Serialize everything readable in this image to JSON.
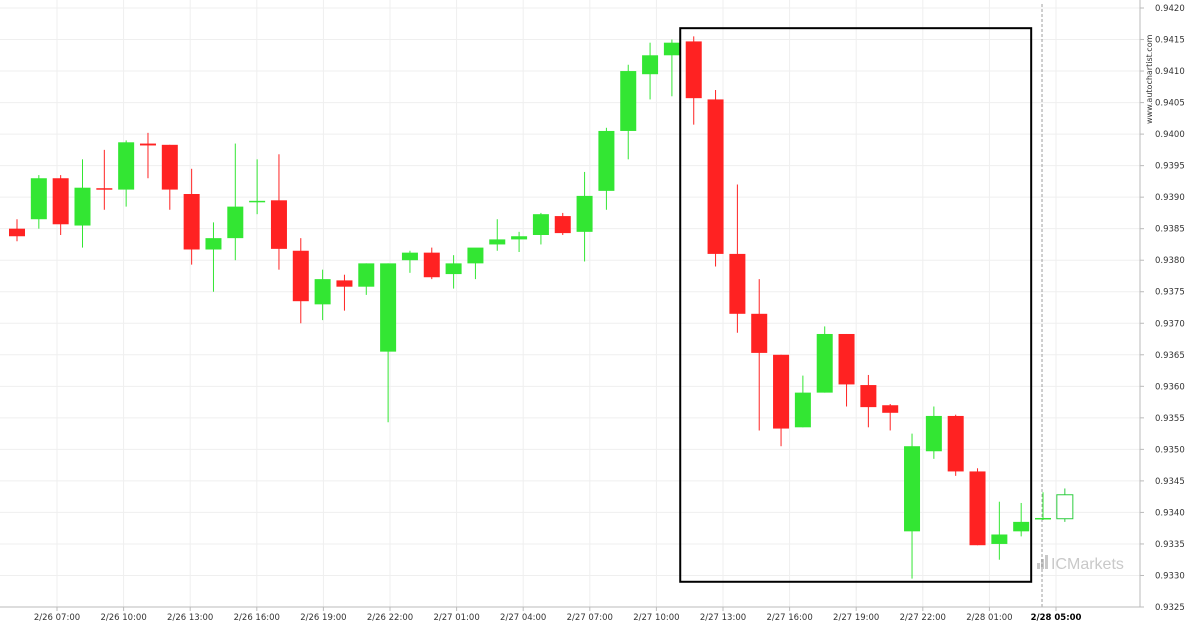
{
  "chart_data": {
    "type": "candlestick",
    "instrument": "",
    "y_axis": {
      "min": 0.9325,
      "max": 0.942,
      "step": 0.0005,
      "position": "right",
      "tick_labels": [
        "0.9325",
        "0.9330",
        "0.9335",
        "0.9340",
        "0.9345",
        "0.9350",
        "0.9355",
        "0.9360",
        "0.9365",
        "0.9370",
        "0.9375",
        "0.9380",
        "0.9385",
        "0.9390",
        "0.9395",
        "0.9400",
        "0.9405",
        "0.9410",
        "0.9415",
        "0.9420"
      ]
    },
    "x_axis": {
      "tick_labels": [
        "2/26 07:00",
        "2/26 10:00",
        "2/26 13:00",
        "2/26 16:00",
        "2/26 19:00",
        "2/26 22:00",
        "2/27 01:00",
        "2/27 04:00",
        "2/27 07:00",
        "2/27 10:00",
        "2/27 13:00",
        "2/27 16:00",
        "2/27 19:00",
        "2/27 22:00",
        "2/28 01:00",
        "2/28 05:00"
      ],
      "highlighted_label": "2/28 05:00"
    },
    "grid": true,
    "colors": {
      "up": "#33e633",
      "down": "#ff2222",
      "outline": "#2ecc40",
      "box": "#000000"
    },
    "candles": [
      {
        "o": 0.9385,
        "h": 0.93865,
        "l": 0.9383,
        "c": 0.93838
      },
      {
        "o": 0.93865,
        "h": 0.93935,
        "l": 0.9385,
        "c": 0.9393
      },
      {
        "o": 0.9393,
        "h": 0.93935,
        "l": 0.9384,
        "c": 0.93857
      },
      {
        "o": 0.93855,
        "h": 0.9396,
        "l": 0.9382,
        "c": 0.93915
      },
      {
        "o": 0.93913,
        "h": 0.93975,
        "l": 0.9388,
        "c": 0.93911
      },
      {
        "o": 0.93912,
        "h": 0.9399,
        "l": 0.93885,
        "c": 0.93987
      },
      {
        "o": 0.93985,
        "h": 0.94002,
        "l": 0.9393,
        "c": 0.93982
      },
      {
        "o": 0.93983,
        "h": 0.93983,
        "l": 0.9388,
        "c": 0.93912
      },
      {
        "o": 0.93905,
        "h": 0.93945,
        "l": 0.93793,
        "c": 0.93817
      },
      {
        "o": 0.93817,
        "h": 0.9386,
        "l": 0.9375,
        "c": 0.93835
      },
      {
        "o": 0.93835,
        "h": 0.93985,
        "l": 0.938,
        "c": 0.93885
      },
      {
        "o": 0.93892,
        "h": 0.9396,
        "l": 0.93873,
        "c": 0.93893
      },
      {
        "o": 0.93895,
        "h": 0.93968,
        "l": 0.93785,
        "c": 0.93818
      },
      {
        "o": 0.93815,
        "h": 0.93835,
        "l": 0.937,
        "c": 0.93735
      },
      {
        "o": 0.9373,
        "h": 0.93785,
        "l": 0.93705,
        "c": 0.9377
      },
      {
        "o": 0.93768,
        "h": 0.93777,
        "l": 0.9372,
        "c": 0.93758
      },
      {
        "o": 0.93758,
        "h": 0.93795,
        "l": 0.93745,
        "c": 0.93795
      },
      {
        "o": 0.93655,
        "h": 0.93795,
        "l": 0.93543,
        "c": 0.93795
      },
      {
        "o": 0.938,
        "h": 0.93815,
        "l": 0.9378,
        "c": 0.93812
      },
      {
        "o": 0.93812,
        "h": 0.9382,
        "l": 0.9377,
        "c": 0.93773
      },
      {
        "o": 0.93778,
        "h": 0.93808,
        "l": 0.93755,
        "c": 0.93795
      },
      {
        "o": 0.93795,
        "h": 0.93813,
        "l": 0.9377,
        "c": 0.9382
      },
      {
        "o": 0.93825,
        "h": 0.93865,
        "l": 0.93815,
        "c": 0.93833
      },
      {
        "o": 0.93833,
        "h": 0.93845,
        "l": 0.93813,
        "c": 0.93838
      },
      {
        "o": 0.9384,
        "h": 0.93875,
        "l": 0.93825,
        "c": 0.93873
      },
      {
        "o": 0.9387,
        "h": 0.93875,
        "l": 0.9384,
        "c": 0.93843
      },
      {
        "o": 0.93845,
        "h": 0.9394,
        "l": 0.93798,
        "c": 0.93902
      },
      {
        "o": 0.9391,
        "h": 0.9401,
        "l": 0.9388,
        "c": 0.94005
      },
      {
        "o": 0.94005,
        "h": 0.9411,
        "l": 0.9396,
        "c": 0.941
      },
      {
        "o": 0.94095,
        "h": 0.94145,
        "l": 0.94055,
        "c": 0.94125
      },
      {
        "o": 0.94125,
        "h": 0.9415,
        "l": 0.9406,
        "c": 0.94145
      },
      {
        "o": 0.94147,
        "h": 0.94155,
        "l": 0.94015,
        "c": 0.94057
      },
      {
        "o": 0.94055,
        "h": 0.9407,
        "l": 0.9379,
        "c": 0.9381
      },
      {
        "o": 0.9381,
        "h": 0.9392,
        "l": 0.93685,
        "c": 0.93715
      },
      {
        "o": 0.93715,
        "h": 0.9377,
        "l": 0.9353,
        "c": 0.93653
      },
      {
        "o": 0.9365,
        "h": 0.9365,
        "l": 0.93505,
        "c": 0.93533
      },
      {
        "o": 0.93535,
        "h": 0.93617,
        "l": 0.93535,
        "c": 0.9359
      },
      {
        "o": 0.9359,
        "h": 0.93695,
        "l": 0.9359,
        "c": 0.93683
      },
      {
        "o": 0.93683,
        "h": 0.93683,
        "l": 0.93568,
        "c": 0.93603
      },
      {
        "o": 0.93602,
        "h": 0.93618,
        "l": 0.93535,
        "c": 0.93567
      },
      {
        "o": 0.9357,
        "h": 0.93572,
        "l": 0.9353,
        "c": 0.93558
      },
      {
        "o": 0.9337,
        "h": 0.93525,
        "l": 0.93295,
        "c": 0.93505
      },
      {
        "o": 0.93497,
        "h": 0.93568,
        "l": 0.93485,
        "c": 0.93553
      },
      {
        "o": 0.93553,
        "h": 0.93555,
        "l": 0.93458,
        "c": 0.93465
      },
      {
        "o": 0.93465,
        "h": 0.9347,
        "l": 0.93348,
        "c": 0.93348
      },
      {
        "o": 0.9335,
        "h": 0.93417,
        "l": 0.93325,
        "c": 0.93365
      },
      {
        "o": 0.9337,
        "h": 0.93415,
        "l": 0.93362,
        "c": 0.93385
      },
      {
        "o": 0.93388,
        "h": 0.93432,
        "l": 0.93388,
        "c": 0.9339
      },
      {
        "o": 0.9339,
        "h": 0.93438,
        "l": 0.93385,
        "c": 0.93428,
        "hollow": true
      }
    ],
    "highlight_box": {
      "from_candle": 31,
      "to_candle": 46,
      "low": 0.9329,
      "high": 0.94168
    },
    "current_time_marker": {
      "candle": 47,
      "label": "2/28 05:00"
    }
  },
  "watermarks": {
    "site_vertical": "www.autochartist.com",
    "brand": "ICMarkets"
  }
}
